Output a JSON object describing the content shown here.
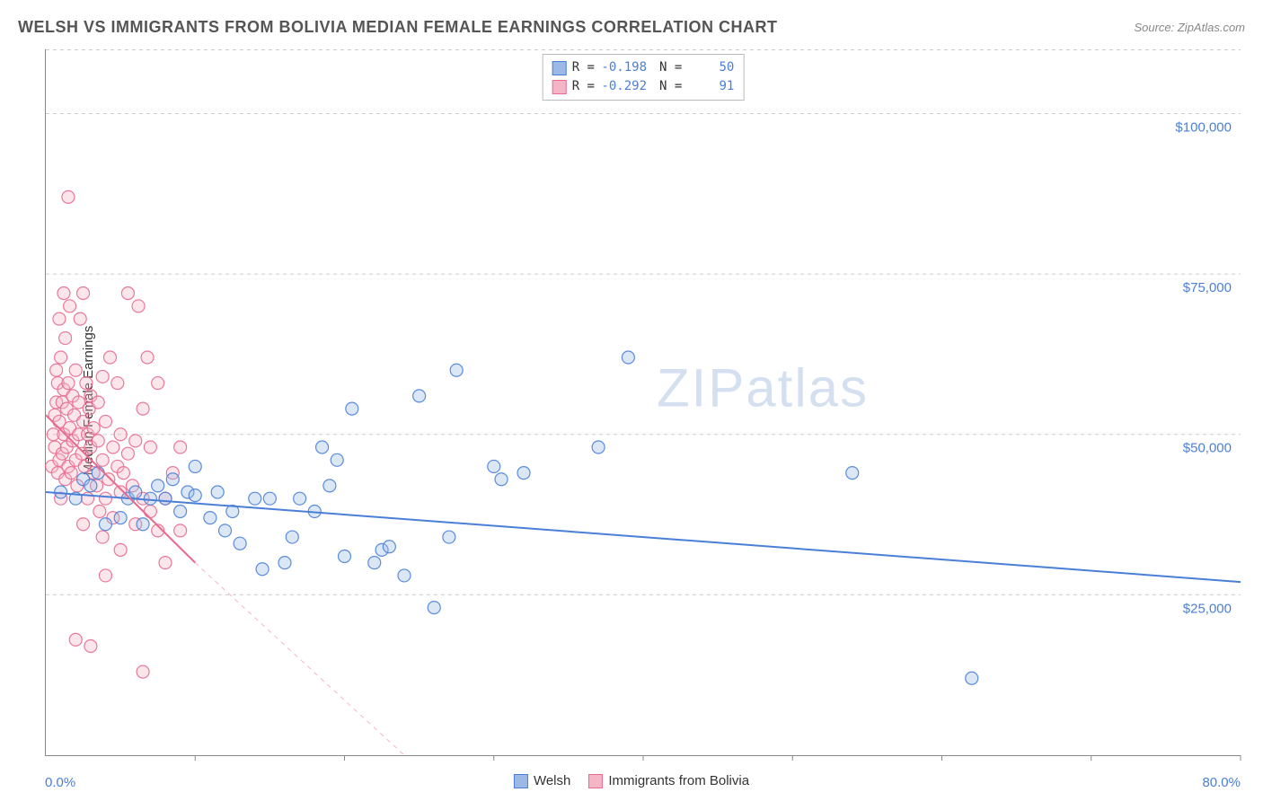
{
  "title": "WELSH VS IMMIGRANTS FROM BOLIVIA MEDIAN FEMALE EARNINGS CORRELATION CHART",
  "source_label": "Source: ZipAtlas.com",
  "y_axis_label": "Median Female Earnings",
  "watermark": "ZIPatlas",
  "chart": {
    "type": "scatter",
    "xlim": [
      0,
      80
    ],
    "ylim": [
      0,
      110000
    ],
    "x_unit": "%",
    "x_tick_positions": [
      0,
      10,
      20,
      30,
      40,
      50,
      60,
      70,
      80
    ],
    "x_labels_shown": {
      "first": "0.0%",
      "last": "80.0%"
    },
    "y_gridlines": [
      25000,
      50000,
      75000,
      100000
    ],
    "y_tick_labels": [
      "$25,000",
      "$50,000",
      "$75,000",
      "$100,000"
    ],
    "grid_color": "#cccccc",
    "grid_dash": true,
    "background_color": "#ffffff",
    "point_radius": 7,
    "point_fill_opacity": 0.35,
    "point_stroke_opacity": 0.9,
    "point_stroke_width": 1.2,
    "trend_line_width": 2,
    "dashed_extension": true
  },
  "series": [
    {
      "key": "welsh",
      "label": "Welsh",
      "color_fill": "#9cb9e6",
      "color_stroke": "#4a7fd8",
      "R": "-0.198",
      "N": "50",
      "trend": {
        "x1": 0,
        "y1": 41000,
        "x2": 80,
        "y2": 27000
      },
      "points": [
        [
          1,
          41000
        ],
        [
          2,
          40000
        ],
        [
          2.5,
          43000
        ],
        [
          3,
          42000
        ],
        [
          3.5,
          44000
        ],
        [
          4,
          36000
        ],
        [
          5,
          37000
        ],
        [
          5.5,
          40000
        ],
        [
          6,
          41000
        ],
        [
          6.5,
          36000
        ],
        [
          7,
          40000
        ],
        [
          7.5,
          42000
        ],
        [
          8,
          40000
        ],
        [
          8.5,
          43000
        ],
        [
          9,
          38000
        ],
        [
          9.5,
          41000
        ],
        [
          10,
          40500
        ],
        [
          10,
          45000
        ],
        [
          11,
          37000
        ],
        [
          11.5,
          41000
        ],
        [
          12,
          35000
        ],
        [
          12.5,
          38000
        ],
        [
          13,
          33000
        ],
        [
          14,
          40000
        ],
        [
          14.5,
          29000
        ],
        [
          15,
          40000
        ],
        [
          16,
          30000
        ],
        [
          16.5,
          34000
        ],
        [
          17,
          40000
        ],
        [
          18,
          38000
        ],
        [
          18.5,
          48000
        ],
        [
          19,
          42000
        ],
        [
          19.5,
          46000
        ],
        [
          20,
          31000
        ],
        [
          20.5,
          54000
        ],
        [
          22,
          30000
        ],
        [
          22.5,
          32000
        ],
        [
          23,
          32500
        ],
        [
          24,
          28000
        ],
        [
          25,
          56000
        ],
        [
          26,
          23000
        ],
        [
          27,
          34000
        ],
        [
          27.5,
          60000
        ],
        [
          30,
          45000
        ],
        [
          30.5,
          43000
        ],
        [
          32,
          44000
        ],
        [
          37,
          48000
        ],
        [
          39,
          62000
        ],
        [
          54,
          44000
        ],
        [
          62,
          12000
        ]
      ]
    },
    {
      "key": "bolivia",
      "label": "Immigrants from Bolivia",
      "color_fill": "#f4b6c6",
      "color_stroke": "#e86a8f",
      "R": "-0.292",
      "N": "91",
      "trend": {
        "x1": 0,
        "y1": 53000,
        "x2": 10,
        "y2": 30000
      },
      "trend_ext": {
        "x1": 10,
        "y1": 30000,
        "x2": 24,
        "y2": 0
      },
      "points": [
        [
          0.4,
          45000
        ],
        [
          0.5,
          50000
        ],
        [
          0.6,
          48000
        ],
        [
          0.6,
          53000
        ],
        [
          0.7,
          55000
        ],
        [
          0.7,
          60000
        ],
        [
          0.8,
          44000
        ],
        [
          0.8,
          58000
        ],
        [
          0.9,
          46000
        ],
        [
          0.9,
          52000
        ],
        [
          1.0,
          40000
        ],
        [
          1.0,
          62000
        ],
        [
          1.1,
          47000
        ],
        [
          1.1,
          55000
        ],
        [
          1.2,
          50000
        ],
        [
          1.2,
          57000
        ],
        [
          1.3,
          43000
        ],
        [
          1.3,
          65000
        ],
        [
          1.4,
          48000
        ],
        [
          1.4,
          54000
        ],
        [
          1.5,
          45000
        ],
        [
          1.5,
          58000
        ],
        [
          1.6,
          51000
        ],
        [
          1.6,
          70000
        ],
        [
          1.7,
          44000
        ],
        [
          1.8,
          56000
        ],
        [
          1.8,
          49000
        ],
        [
          1.9,
          53000
        ],
        [
          2.0,
          46000
        ],
        [
          2.0,
          60000
        ],
        [
          2.1,
          42000
        ],
        [
          2.2,
          55000
        ],
        [
          2.2,
          50000
        ],
        [
          2.3,
          68000
        ],
        [
          2.4,
          47000
        ],
        [
          2.5,
          52000
        ],
        [
          2.5,
          72000
        ],
        [
          2.6,
          45000
        ],
        [
          2.7,
          58000
        ],
        [
          2.8,
          50000
        ],
        [
          2.8,
          40000
        ],
        [
          2.9,
          54000
        ],
        [
          3.0,
          48000
        ],
        [
          3.0,
          56000
        ],
        [
          3.2,
          51000
        ],
        [
          3.2,
          44000
        ],
        [
          3.4,
          42000
        ],
        [
          3.5,
          49000
        ],
        [
          3.5,
          55000
        ],
        [
          3.6,
          38000
        ],
        [
          3.8,
          46000
        ],
        [
          3.8,
          59000
        ],
        [
          4.0,
          40000
        ],
        [
          4.0,
          52000
        ],
        [
          4.2,
          43000
        ],
        [
          4.3,
          62000
        ],
        [
          4.5,
          48000
        ],
        [
          4.5,
          37000
        ],
        [
          4.8,
          45000
        ],
        [
          4.8,
          58000
        ],
        [
          5.0,
          41000
        ],
        [
          5.0,
          50000
        ],
        [
          5.2,
          44000
        ],
        [
          5.5,
          47000
        ],
        [
          5.5,
          72000
        ],
        [
          5.8,
          42000
        ],
        [
          6.0,
          49000
        ],
        [
          6.0,
          36000
        ],
        [
          6.2,
          70000
        ],
        [
          6.5,
          40000
        ],
        [
          6.5,
          54000
        ],
        [
          6.8,
          62000
        ],
        [
          7.0,
          48000
        ],
        [
          7.0,
          38000
        ],
        [
          7.5,
          35000
        ],
        [
          7.5,
          58000
        ],
        [
          8.0,
          40000
        ],
        [
          8.0,
          30000
        ],
        [
          8.5,
          44000
        ],
        [
          9.0,
          35000
        ],
        [
          9.0,
          48000
        ],
        [
          1.5,
          87000
        ],
        [
          2.0,
          18000
        ],
        [
          4.0,
          28000
        ],
        [
          3.0,
          17000
        ],
        [
          6.5,
          13000
        ],
        [
          5.0,
          32000
        ],
        [
          2.5,
          36000
        ],
        [
          1.2,
          72000
        ],
        [
          0.9,
          68000
        ],
        [
          3.8,
          34000
        ]
      ]
    }
  ],
  "legend_top": {
    "r_label": "R =",
    "n_label": "N ="
  },
  "legend_bottom": {
    "items": [
      "Welsh",
      "Immigrants from Bolivia"
    ]
  }
}
